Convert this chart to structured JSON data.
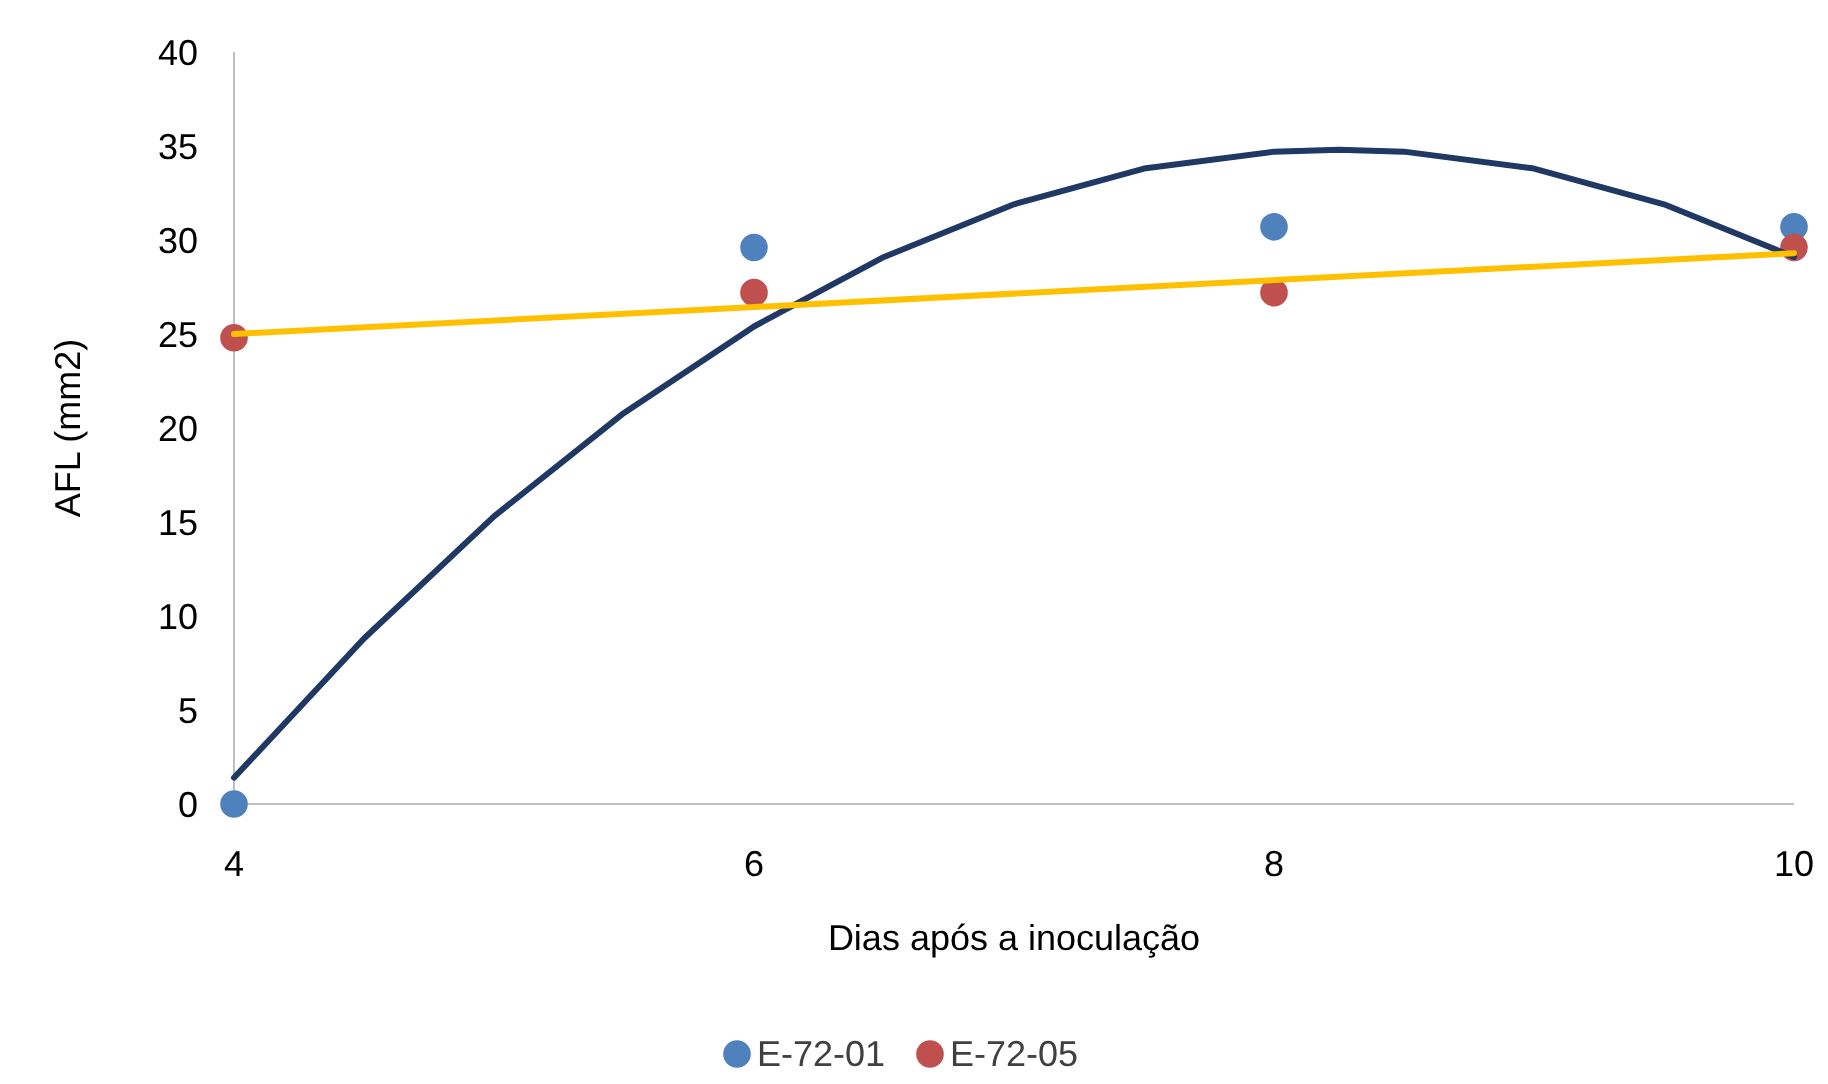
{
  "chart_data": {
    "type": "scatter",
    "xlabel": "Dias após a inoculação",
    "ylabel": "AFL (mm2)",
    "xlim": [
      4,
      10
    ],
    "xticks": [
      4,
      6,
      8,
      10
    ],
    "ylim": [
      0,
      40
    ],
    "yticks": [
      0,
      5,
      10,
      15,
      20,
      25,
      30,
      35,
      40
    ],
    "grid": false,
    "legend": "bottom",
    "marker": "circle",
    "series": [
      {
        "name": "E-72-01",
        "color": "#4f81bd",
        "x": [
          4,
          6,
          8,
          10
        ],
        "values": [
          0,
          29.6,
          30.7,
          30.7
        ]
      },
      {
        "name": "E-72-05",
        "color": "#c0504d",
        "x": [
          4,
          6,
          8,
          10
        ],
        "values": [
          24.8,
          27.2,
          27.2,
          29.6
        ]
      },
      {
        "type": "line",
        "marker": "none",
        "color": "#1f3864",
        "x": [
          4,
          4.5,
          5,
          5.5,
          6,
          6.5,
          7,
          7.5,
          8,
          8.25,
          8.5,
          9,
          9.5,
          10
        ],
        "values": [
          1.4,
          8.8,
          15.3,
          20.8,
          25.4,
          29.1,
          31.9,
          33.8,
          34.7,
          34.8,
          34.7,
          33.8,
          31.9,
          29.1
        ]
      },
      {
        "type": "line",
        "marker": "none",
        "color": "#ffc000",
        "x": [
          4,
          10
        ],
        "values": [
          25,
          29.3
        ]
      }
    ]
  }
}
